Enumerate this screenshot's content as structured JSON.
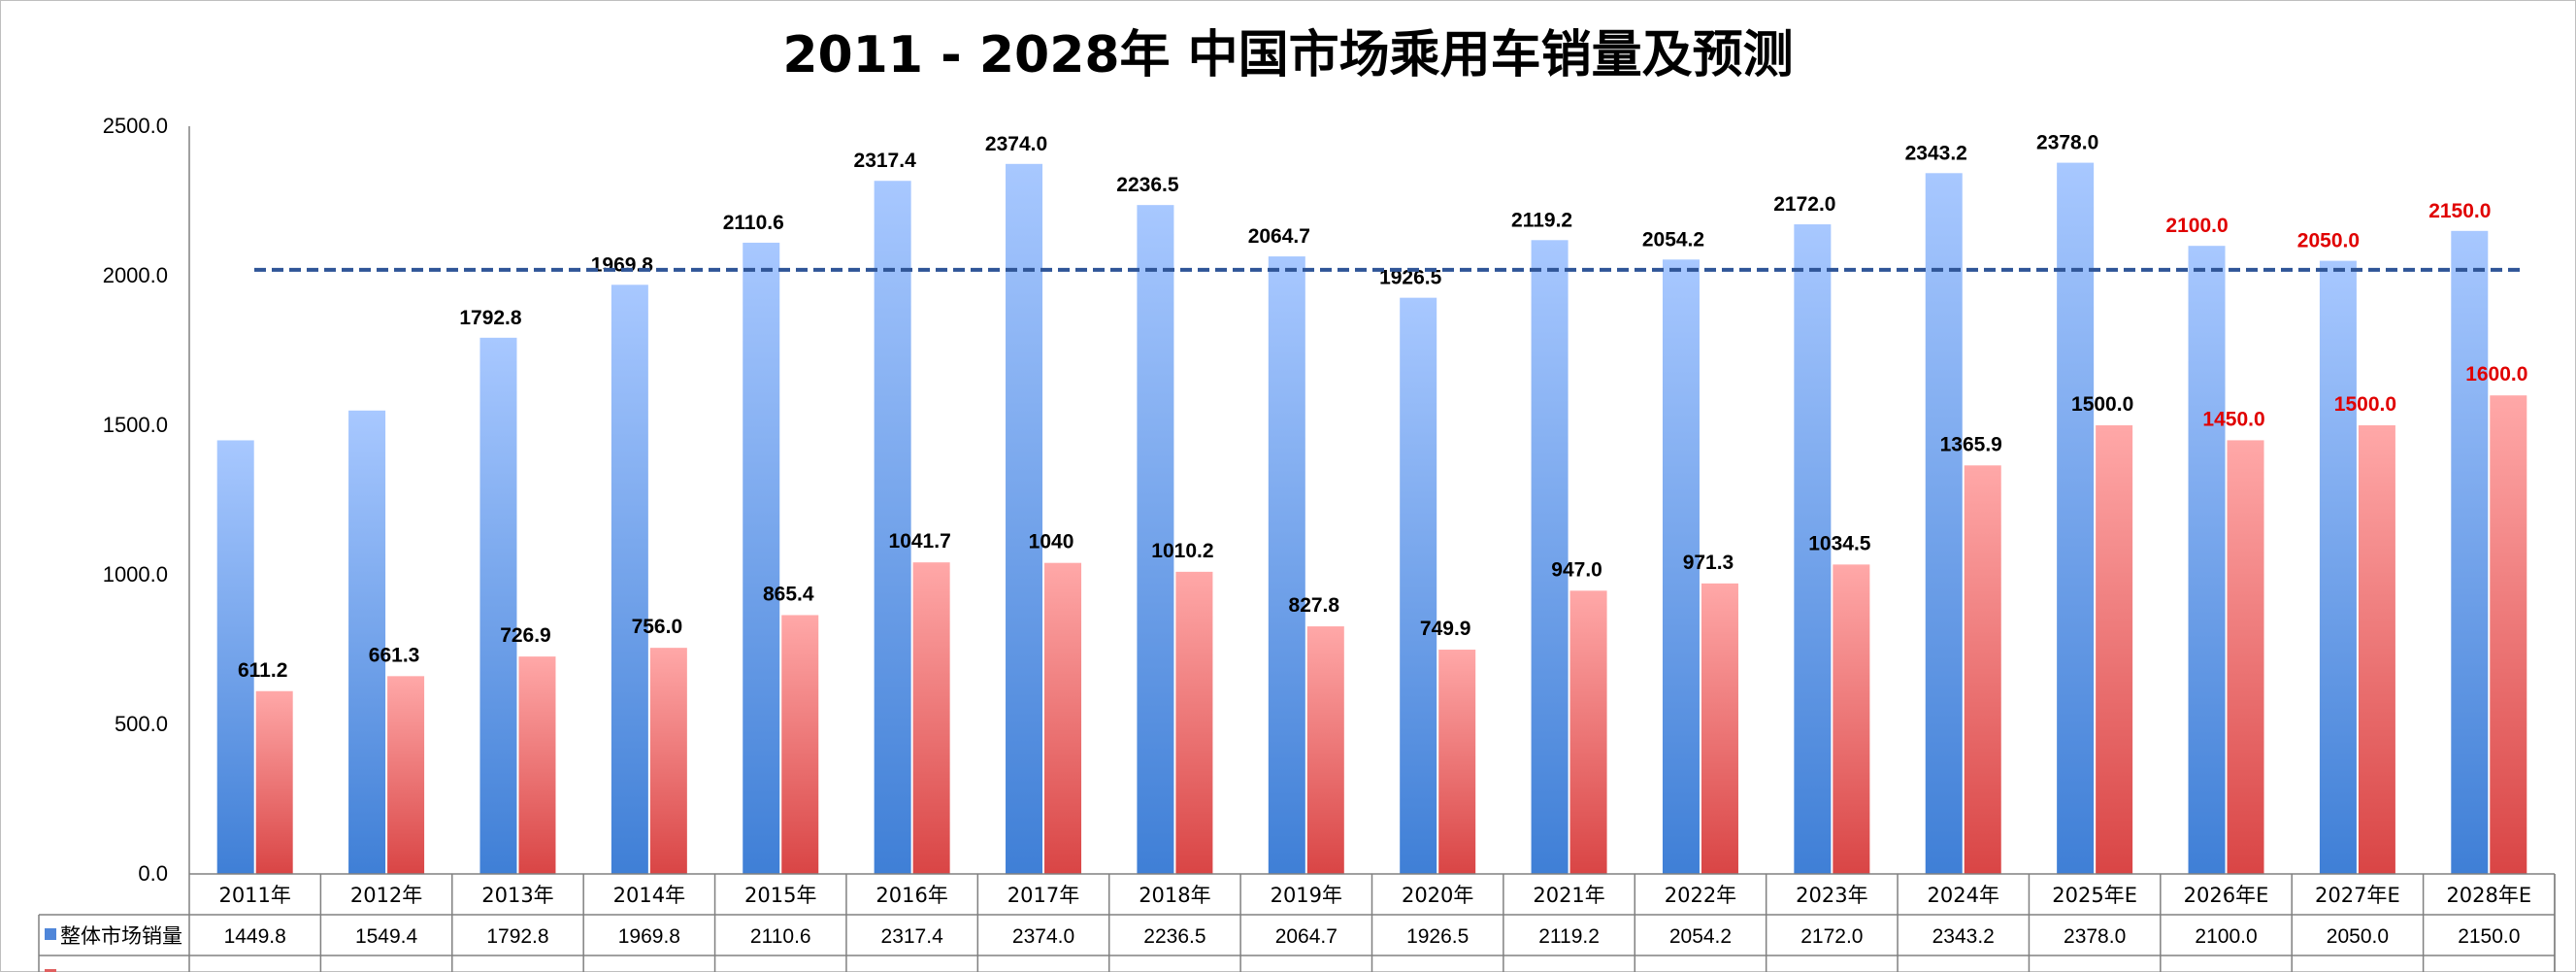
{
  "chart_data": {
    "type": "bar",
    "title": "2011 - 2028年 中国市场乘用车销量及预测",
    "categories": [
      "2011年",
      "2012年",
      "2013年",
      "2014年",
      "2015年",
      "2016年",
      "2017年",
      "2018年",
      "2019年",
      "2020年",
      "2021年",
      "2022年",
      "2023年",
      "2024年",
      "2025年E",
      "2026年E",
      "2027年E",
      "2028年E"
    ],
    "ylim": [
      0,
      2500
    ],
    "yticks": [
      "0.0",
      "500.0",
      "1000.0",
      "1500.0",
      "2000.0",
      "2500.0"
    ],
    "reference_line": 2020,
    "series": [
      {
        "name": "整体市场销量",
        "color": "#5b8fdc",
        "values": [
          1449.8,
          1549.4,
          1792.8,
          1969.8,
          2110.6,
          2317.4,
          2374.0,
          2236.5,
          2064.7,
          1926.5,
          2119.2,
          2054.2,
          2172.0,
          2343.2,
          2378.0,
          2100.0,
          2050.0,
          2150.0
        ],
        "data_labels": [
          "",
          "",
          "1792.8",
          "1969.8",
          "2110.6",
          "2317.4",
          "2374.0",
          "2236.5",
          "2064.7",
          "1926.5",
          "2119.2",
          "2054.2",
          "2172.0",
          "2343.2",
          "2378.0",
          "2100.0",
          "2050.0",
          "2150.0"
        ],
        "table_values": [
          "1449.8",
          "1549.4",
          "1792.8",
          "1969.8",
          "2110.6",
          "2317.4",
          "2374.0",
          "2236.5",
          "2064.7",
          "1926.5",
          "2119.2",
          "2054.2",
          "2172.0",
          "2343.2",
          "2378.0",
          "2100.0",
          "2050.0",
          "2150.0"
        ]
      },
      {
        "name": "",
        "color": "#e15a5a",
        "values": [
          611.2,
          661.3,
          726.9,
          756.0,
          865.4,
          1041.7,
          1040,
          1010.2,
          827.8,
          749.9,
          947.0,
          971.3,
          1034.5,
          1365.9,
          1500.0,
          1450.0,
          1500.0,
          1600.0
        ],
        "data_labels": [
          "611.2",
          "661.3",
          "726.9",
          "756.0",
          "865.4",
          "1041.7",
          "1040",
          "1010.2",
          "827.8",
          "749.9",
          "947.0",
          "971.3",
          "1034.5",
          "1365.9",
          "1500.0",
          "1450.0",
          "1500.0",
          "1600.0"
        ]
      }
    ],
    "forecast_label_color": "#e00000",
    "forecast_start_index": 15,
    "grid": false
  }
}
